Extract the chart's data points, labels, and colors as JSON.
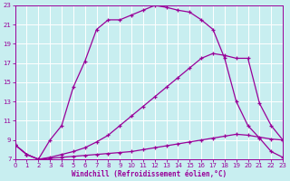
{
  "xlabel": "Windchill (Refroidissement éolien,°C)",
  "bg_color": "#c8eef0",
  "line_color": "#990099",
  "grid_color": "#ffffff",
  "xlim": [
    0,
    23
  ],
  "ylim": [
    7,
    23
  ],
  "yticks": [
    7,
    9,
    11,
    13,
    15,
    17,
    19,
    21,
    23
  ],
  "xticks": [
    0,
    1,
    2,
    3,
    4,
    5,
    6,
    7,
    8,
    9,
    10,
    11,
    12,
    13,
    14,
    15,
    16,
    17,
    18,
    19,
    20,
    21,
    22,
    23
  ],
  "curve_top_x": [
    0,
    1,
    2,
    3,
    4,
    5,
    6,
    7,
    8,
    9,
    10,
    11,
    12,
    13,
    14,
    15,
    16,
    17,
    18,
    19,
    20,
    21,
    22,
    23
  ],
  "curve_top_y": [
    8.5,
    7.5,
    7.0,
    9.0,
    10.5,
    14.5,
    17.2,
    20.5,
    21.5,
    21.5,
    22.0,
    22.5,
    23.0,
    22.8,
    22.5,
    22.3,
    21.5,
    20.5,
    17.5,
    13.0,
    10.5,
    9.2,
    7.8,
    7.2
  ],
  "curve_mid_x": [
    0,
    1,
    2,
    3,
    4,
    5,
    6,
    7,
    8,
    9,
    10,
    11,
    12,
    13,
    14,
    15,
    16,
    17,
    18,
    19,
    20,
    21,
    22,
    23
  ],
  "curve_mid_y": [
    8.5,
    7.5,
    7.0,
    7.2,
    7.5,
    7.8,
    8.2,
    8.8,
    9.5,
    10.5,
    11.5,
    12.5,
    13.5,
    14.5,
    15.5,
    16.5,
    17.5,
    18.0,
    17.8,
    17.5,
    17.5,
    12.8,
    10.5,
    9.0
  ],
  "curve_bot_x": [
    0,
    1,
    2,
    3,
    4,
    5,
    6,
    7,
    8,
    9,
    10,
    11,
    12,
    13,
    14,
    15,
    16,
    17,
    18,
    19,
    20,
    21,
    22,
    23
  ],
  "curve_bot_y": [
    8.5,
    7.5,
    7.0,
    7.1,
    7.2,
    7.3,
    7.4,
    7.5,
    7.6,
    7.7,
    7.8,
    8.0,
    8.2,
    8.4,
    8.6,
    8.8,
    9.0,
    9.2,
    9.4,
    9.6,
    9.5,
    9.3,
    9.1,
    9.0
  ]
}
